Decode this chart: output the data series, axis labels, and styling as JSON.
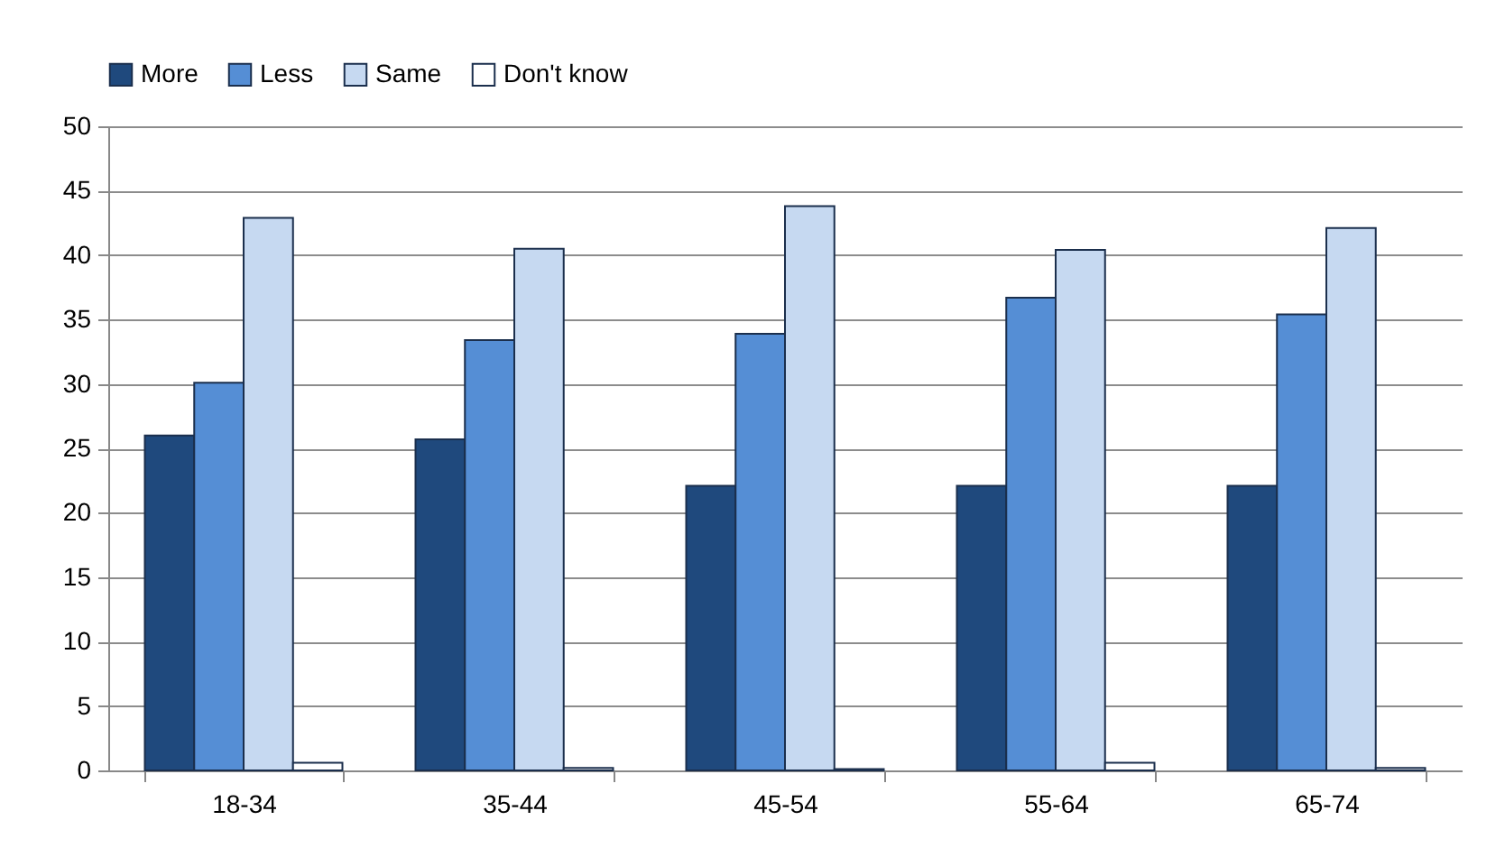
{
  "chart_data": {
    "type": "bar",
    "categories": [
      "18-34",
      "35-44",
      "45-54",
      "55-64",
      "65-74"
    ],
    "series": [
      {
        "name": "More",
        "color": "#1f497d",
        "values": [
          26,
          25.7,
          22.1,
          22.1,
          22.1
        ]
      },
      {
        "name": "Less",
        "color": "#558ed5",
        "values": [
          30.1,
          33.4,
          33.9,
          36.7,
          35.4
        ]
      },
      {
        "name": "Same",
        "color": "#c6d9f1",
        "values": [
          42.9,
          40.5,
          43.8,
          40.4,
          42.1
        ]
      },
      {
        "name": "Don't know",
        "color": "#ffffff",
        "values": [
          0.6,
          0.2,
          0.1,
          0.6,
          0.2
        ]
      }
    ],
    "ylim": [
      0,
      50
    ],
    "yticks": [
      0,
      5,
      10,
      15,
      20,
      25,
      30,
      35,
      40,
      45,
      50
    ],
    "grid": "y",
    "legend": "top"
  }
}
